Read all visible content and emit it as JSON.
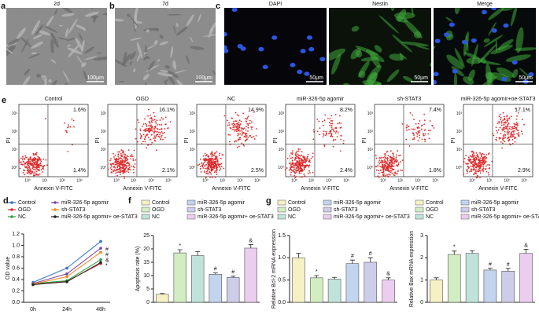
{
  "panels": {
    "a": {
      "letter": "a",
      "title": "2d",
      "scale_bar": "100μm"
    },
    "b": {
      "letter": "b",
      "title": "7d",
      "scale_bar": "100μm"
    },
    "c": {
      "letter": "c",
      "images": [
        {
          "title": "DAPI",
          "scale_bar": "50μm"
        },
        {
          "title": "Nestin",
          "scale_bar": "50μm"
        },
        {
          "title": "Merge",
          "scale_bar": "50μm"
        }
      ]
    },
    "e": {
      "letter": "e",
      "x_label": "Annexin V-FITC",
      "y_label": "PI",
      "ticks": [
        "10⁰",
        "10¹",
        "10²",
        "10³"
      ],
      "plots": [
        {
          "title": "Control",
          "upper_right": "1.6%",
          "lower_right": "1.4%"
        },
        {
          "title": "OGD",
          "upper_right": "16.1%",
          "lower_right": "2.1%"
        },
        {
          "title": "NC",
          "upper_right": "14.9%",
          "lower_right": "2.5%"
        },
        {
          "title": "miR-326-5p agomir",
          "upper_right": "8.2%",
          "lower_right": "2.4%"
        },
        {
          "title": "sh-STAT3",
          "upper_right": "7.4%",
          "lower_right": "1.8%"
        },
        {
          "title": "miR-326-5p agomir+oe-STAT3",
          "upper_right": "17.1%",
          "lower_right": "2.9%"
        }
      ]
    }
  },
  "chart_data": [
    {
      "type": "line",
      "letter": "d",
      "y_label": "OD value",
      "categories": [
        "0h",
        "24h",
        "48h"
      ],
      "ylim": [
        0,
        1.2
      ],
      "yticks": [
        {
          "value": 0,
          "label": "0.0"
        },
        {
          "value": 0.2,
          "label": "0.2"
        },
        {
          "value": 0.4,
          "label": "0.4"
        },
        {
          "value": 0.6,
          "label": "0.6"
        },
        {
          "value": 0.8,
          "label": "0.8"
        },
        {
          "value": 1,
          "label": "1.0"
        },
        {
          "value": 1.2,
          "label": "1.2"
        }
      ],
      "series": [
        {
          "name": "Control",
          "color": "#2f6fd0",
          "values": [
            0.35,
            0.6,
            1.07
          ]
        },
        {
          "name": "OGD",
          "color": "#d83030",
          "values": [
            0.32,
            0.37,
            0.68
          ]
        },
        {
          "name": "NC",
          "color": "#2ea040",
          "values": [
            0.33,
            0.38,
            0.75
          ]
        },
        {
          "name": "miR-326-5p agomir",
          "color": "#7a3ea8",
          "values": [
            0.33,
            0.5,
            0.95
          ]
        },
        {
          "name": "sh-STAT3",
          "color": "#f08a20",
          "values": [
            0.32,
            0.45,
            0.88
          ]
        },
        {
          "name": "miR-326-5p agomir+ oe-STAT3",
          "color": "#222222",
          "values": [
            0.31,
            0.36,
            0.7
          ]
        }
      ],
      "annotations": [
        "#",
        "#",
        "&",
        "*"
      ]
    },
    {
      "type": "bar",
      "letter": "f",
      "y_label": "Apoptosis rate (%)",
      "categories": [
        "Control",
        "OGD",
        "NC",
        "miR-326-5p agomir",
        "sh-STAT3",
        "miR-326-5p agomir+ oe-STAT3"
      ],
      "colors": [
        "#f6f1c4",
        "#d3edc2",
        "#bfe3da",
        "#c2d4ee",
        "#cdcdea",
        "#ebcdef"
      ],
      "values": [
        3,
        18.5,
        17.5,
        10.5,
        9.3,
        20.3
      ],
      "errors": [
        0.3,
        1.2,
        1.5,
        0.5,
        0.5,
        1.3
      ],
      "annotations": [
        null,
        "*",
        null,
        "#",
        "#",
        "&"
      ],
      "ylim": [
        0,
        25
      ],
      "yticks": [
        0,
        5,
        10,
        15,
        20,
        25
      ]
    },
    {
      "type": "bar",
      "letter": "g",
      "y_label": "Relative Bcl-2 mRNA expression",
      "categories": [
        "Control",
        "OGD",
        "NC",
        "miR-326-5p agomir",
        "sh-STAT3",
        "miR-326-5p agomir+ oe-STAT3"
      ],
      "colors": [
        "#f6f1c4",
        "#d3edc2",
        "#bfe3da",
        "#c2d4ee",
        "#cdcdea",
        "#ebcdef"
      ],
      "values": [
        1,
        0.55,
        0.52,
        0.87,
        0.9,
        0.5
      ],
      "errors": [
        0.1,
        0.05,
        0.04,
        0.08,
        0.1,
        0.05
      ],
      "annotations": [
        null,
        "*",
        null,
        "#",
        "#",
        "&"
      ],
      "ylim": [
        0,
        1.5
      ],
      "yticks": [
        {
          "value": 0,
          "label": "0.0"
        },
        {
          "value": 0.5,
          "label": "0.5"
        },
        {
          "value": 1,
          "label": "1.0"
        },
        {
          "value": 1.5,
          "label": "1.5"
        }
      ]
    },
    {
      "type": "bar",
      "y_label": "Relative Bax mRNA expression",
      "categories": [
        "Control",
        "OGD",
        "NC",
        "miR-326-5p agomir",
        "sh-STAT3",
        "miR-326-5p agomir+ oe-STAT3"
      ],
      "colors": [
        "#f6f1c4",
        "#d3edc2",
        "#bfe3da",
        "#c2d4ee",
        "#cdcdea",
        "#ebcdef"
      ],
      "values": [
        1,
        2.15,
        2.2,
        1.45,
        1.4,
        2.2
      ],
      "errors": [
        0.1,
        0.15,
        0.12,
        0.08,
        0.12,
        0.18
      ],
      "annotations": [
        null,
        "*",
        null,
        "#",
        "#",
        "&"
      ],
      "ylim": [
        0,
        3
      ],
      "yticks": [
        0,
        1,
        2,
        3
      ]
    }
  ]
}
